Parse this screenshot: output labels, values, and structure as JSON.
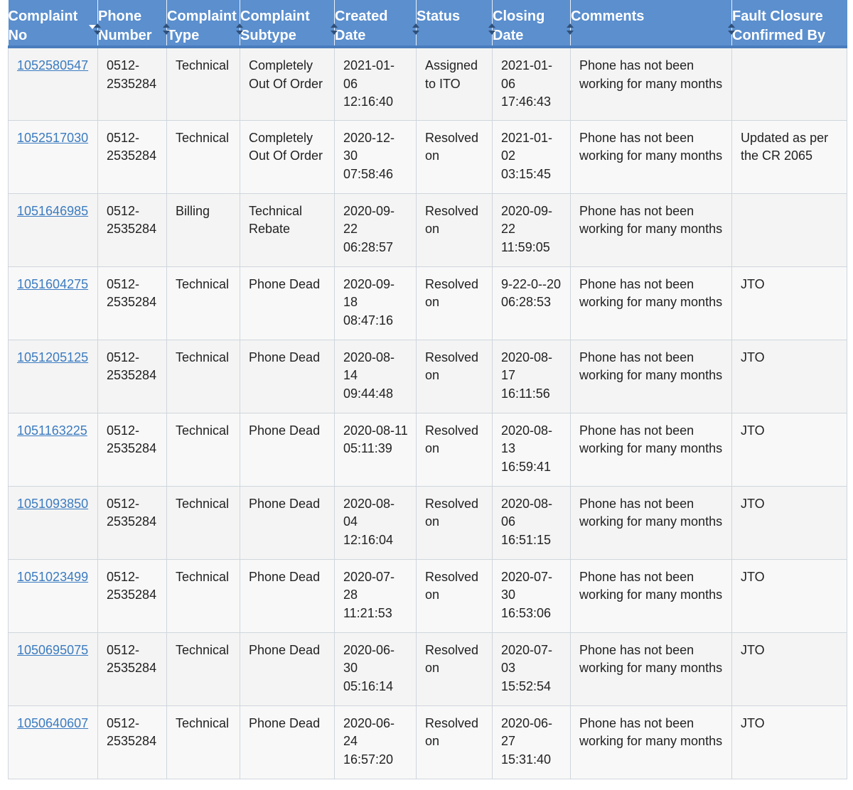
{
  "table": {
    "headers": [
      {
        "label": "Complaint No",
        "sort": "desc"
      },
      {
        "label": "Phone Number",
        "sort": "both"
      },
      {
        "label": "Complaint Type",
        "sort": "both"
      },
      {
        "label": "Complaint Subtype",
        "sort": "both"
      },
      {
        "label": "Created Date",
        "sort": "both"
      },
      {
        "label": "Status",
        "sort": "both"
      },
      {
        "label": "Closing Date",
        "sort": "both"
      },
      {
        "label": "Comments",
        "sort": "both"
      },
      {
        "label": "Fault Closure Confirmed By",
        "sort": "both"
      }
    ],
    "rows": [
      {
        "complaint_no": "1052580547",
        "phone": "0512-2535284",
        "type": "Technical",
        "subtype": "Completely Out Of Order",
        "created": "2021-01-06 12:16:40",
        "status": "Assigned to ITO",
        "closing": "2021-01-06 17:46:43",
        "comments": "Phone has not been working for many months",
        "confirmed_by": ""
      },
      {
        "complaint_no": "1052517030",
        "phone": "0512-2535284",
        "type": "Technical",
        "subtype": "Completely Out Of Order",
        "created": "2020-12-30 07:58:46",
        "status": "Resolved on",
        "closing": "2021-01-02 03:15:45",
        "comments": "Phone has not been working for many months",
        "confirmed_by": "Updated as per the CR 2065"
      },
      {
        "complaint_no": "1051646985",
        "phone": "0512-2535284",
        "type": "Billing",
        "subtype": "Technical Rebate",
        "created": "2020-09-22 06:28:57",
        "status": "Resolved on",
        "closing": "2020-09-22 11:59:05",
        "comments": "Phone has not been working for many months",
        "confirmed_by": ""
      },
      {
        "complaint_no": "1051604275",
        "phone": "0512-2535284",
        "type": "Technical",
        "subtype": "Phone Dead",
        "created": "2020-09-18 08:47:16",
        "status": "Resolved on",
        "closing": "9-22-0--20 06:28:53",
        "comments": "Phone has not been working for many months",
        "confirmed_by": "JTO"
      },
      {
        "complaint_no": "1051205125",
        "phone": "0512-2535284",
        "type": "Technical",
        "subtype": "Phone Dead",
        "created": "2020-08-14 09:44:48",
        "status": "Resolved on",
        "closing": "2020-08-17 16:11:56",
        "comments": "Phone has not been working for many months",
        "confirmed_by": "JTO"
      },
      {
        "complaint_no": "1051163225",
        "phone": "0512-2535284",
        "type": "Technical",
        "subtype": "Phone Dead",
        "created": "2020-08-11 05:11:39",
        "status": "Resolved on",
        "closing": "2020-08-13 16:59:41",
        "comments": "Phone has not been working for many months",
        "confirmed_by": "JTO"
      },
      {
        "complaint_no": "1051093850",
        "phone": "0512-2535284",
        "type": "Technical",
        "subtype": "Phone Dead",
        "created": "2020-08-04 12:16:04",
        "status": "Resolved on",
        "closing": "2020-08-06 16:51:15",
        "comments": "Phone has not been working for many months",
        "confirmed_by": "JTO"
      },
      {
        "complaint_no": "1051023499",
        "phone": "0512-2535284",
        "type": "Technical",
        "subtype": "Phone Dead",
        "created": "2020-07-28 11:21:53",
        "status": "Resolved on",
        "closing": "2020-07-30 16:53:06",
        "comments": "Phone has not been working for many months",
        "confirmed_by": "JTO"
      },
      {
        "complaint_no": "1050695075",
        "phone": "0512-2535284",
        "type": "Technical",
        "subtype": "Phone Dead",
        "created": "2020-06-30 05:16:14",
        "status": "Resolved on",
        "closing": "2020-07-03 15:52:54",
        "comments": "Phone has not been working for many months",
        "confirmed_by": "JTO"
      },
      {
        "complaint_no": "1050640607",
        "phone": "0512-2535284",
        "type": "Technical",
        "subtype": "Phone Dead",
        "created": "2020-06-24 16:57:20",
        "status": "Resolved on",
        "closing": "2020-06-27 15:31:40",
        "comments": "Phone has not been working for many months",
        "confirmed_by": "JTO"
      }
    ]
  },
  "colors": {
    "header_bg": "#5b8fce",
    "link": "#3b7bc0",
    "row_bg": "#f4f4f4",
    "border": "#cfd6dd"
  }
}
